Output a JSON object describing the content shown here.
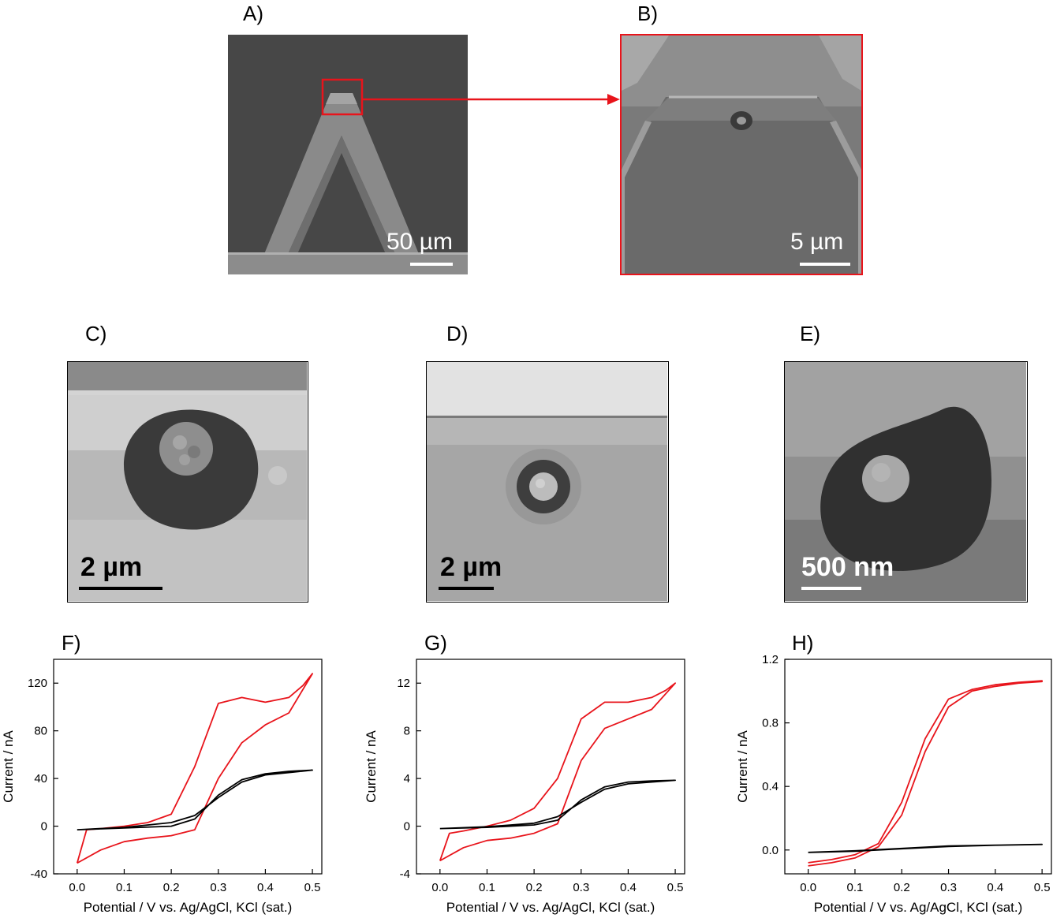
{
  "panels": {
    "A": {
      "label": "A)",
      "scalebar": "50 µm"
    },
    "B": {
      "label": "B)",
      "scalebar": "5 µm"
    },
    "C": {
      "label": "C)",
      "scalebar": "2 µm"
    },
    "D": {
      "label": "D)",
      "scalebar": "2 µm"
    },
    "E": {
      "label": "E)",
      "scalebar": "500 nm"
    },
    "F": {
      "label": "F)"
    },
    "G": {
      "label": "G)"
    },
    "H": {
      "label": "H)"
    }
  },
  "colors": {
    "highlight": "#e8141b",
    "trace_red": "#e8141b",
    "trace_black": "#000000",
    "sem_dark": "#3b3b3b"
  },
  "chart_data": [
    {
      "id": "F",
      "type": "line",
      "xlabel": "Potential / V vs. Ag/AgCl, KCl (sat.)",
      "ylabel": "Current / nA",
      "xlim": [
        -0.05,
        0.52
      ],
      "ylim": [
        -40,
        140
      ],
      "xticks": [
        "0.0",
        "0.1",
        "0.2",
        "0.3",
        "0.4",
        "0.5"
      ],
      "yticks": [
        "-40",
        "0",
        "40",
        "80",
        "120"
      ],
      "series": [
        {
          "color": "red",
          "x": [
            0,
            0.05,
            0.1,
            0.15,
            0.2,
            0.25,
            0.3,
            0.35,
            0.4,
            0.45,
            0.5,
            0.48,
            0.45,
            0.4,
            0.35,
            0.3,
            0.25,
            0.2,
            0.15,
            0.1,
            0.05,
            0.02,
            0
          ],
          "y": [
            -31,
            -20,
            -13,
            -10,
            -8,
            -3,
            40,
            70,
            85,
            95,
            128,
            118,
            108,
            104,
            108,
            103,
            50,
            10,
            3,
            0,
            -2,
            -3,
            -31
          ]
        },
        {
          "color": "black",
          "x": [
            0,
            0.1,
            0.2,
            0.25,
            0.3,
            0.35,
            0.4,
            0.45,
            0.5,
            0.45,
            0.4,
            0.35,
            0.3,
            0.25,
            0.2,
            0.1,
            0
          ],
          "y": [
            -3,
            -1.5,
            0,
            6,
            26,
            39,
            44,
            46,
            47,
            45,
            43,
            37,
            24,
            9,
            3,
            -1,
            -3
          ]
        }
      ]
    },
    {
      "id": "G",
      "type": "line",
      "xlabel": "Potential / V vs. Ag/AgCl, KCl (sat.)",
      "ylabel": "Current / nA",
      "xlim": [
        -0.05,
        0.52
      ],
      "ylim": [
        -4,
        14
      ],
      "xticks": [
        "0.0",
        "0.1",
        "0.2",
        "0.3",
        "0.4",
        "0.5"
      ],
      "yticks": [
        "-4",
        "0",
        "4",
        "8",
        "12"
      ],
      "series": [
        {
          "color": "red",
          "x": [
            0,
            0.05,
            0.1,
            0.15,
            0.2,
            0.25,
            0.3,
            0.35,
            0.4,
            0.45,
            0.5,
            0.48,
            0.45,
            0.4,
            0.35,
            0.3,
            0.25,
            0.2,
            0.15,
            0.1,
            0.05,
            0.02,
            0
          ],
          "y": [
            -2.9,
            -1.8,
            -1.2,
            -1,
            -0.6,
            0.2,
            5.5,
            8.2,
            9,
            9.8,
            12,
            11.4,
            10.8,
            10.4,
            10.4,
            9,
            4,
            1.5,
            0.5,
            0,
            -0.4,
            -0.6,
            -2.9
          ]
        },
        {
          "color": "black",
          "x": [
            0,
            0.1,
            0.2,
            0.25,
            0.3,
            0.35,
            0.4,
            0.45,
            0.5,
            0.45,
            0.4,
            0.35,
            0.3,
            0.25,
            0.2,
            0.1,
            0
          ],
          "y": [
            -0.2,
            -0.1,
            0.1,
            0.5,
            2.2,
            3.3,
            3.7,
            3.8,
            3.85,
            3.7,
            3.55,
            3.1,
            2,
            0.8,
            0.25,
            -0.05,
            -0.2
          ]
        }
      ]
    },
    {
      "id": "H",
      "type": "line",
      "xlabel": "Potential / V vs. Ag/AgCl, KCl (sat.)",
      "ylabel": "Current / nA",
      "xlim": [
        -0.05,
        0.52
      ],
      "ylim": [
        -0.15,
        1.2
      ],
      "xticks": [
        "0.0",
        "0.1",
        "0.2",
        "0.3",
        "0.4",
        "0.5"
      ],
      "yticks": [
        "0.0",
        "0.4",
        "0.8",
        "1.2"
      ],
      "series": [
        {
          "color": "red",
          "x": [
            0,
            0.05,
            0.1,
            0.15,
            0.2,
            0.25,
            0.3,
            0.35,
            0.4,
            0.45,
            0.5,
            0.5,
            0.45,
            0.4,
            0.35,
            0.3,
            0.25,
            0.2,
            0.15,
            0.1,
            0.05,
            0
          ],
          "y": [
            -0.1,
            -0.08,
            -0.05,
            0.02,
            0.22,
            0.62,
            0.9,
            1.0,
            1.03,
            1.05,
            1.06,
            1.065,
            1.055,
            1.04,
            1.01,
            0.95,
            0.7,
            0.3,
            0.04,
            -0.03,
            -0.06,
            -0.08
          ]
        },
        {
          "color": "black",
          "x": [
            0,
            0.1,
            0.2,
            0.3,
            0.4,
            0.5,
            0.4,
            0.3,
            0.2,
            0.1,
            0
          ],
          "y": [
            -0.015,
            -0.005,
            0.01,
            0.025,
            0.03,
            0.035,
            0.03,
            0.022,
            0.008,
            -0.008,
            -0.015
          ]
        }
      ]
    }
  ]
}
